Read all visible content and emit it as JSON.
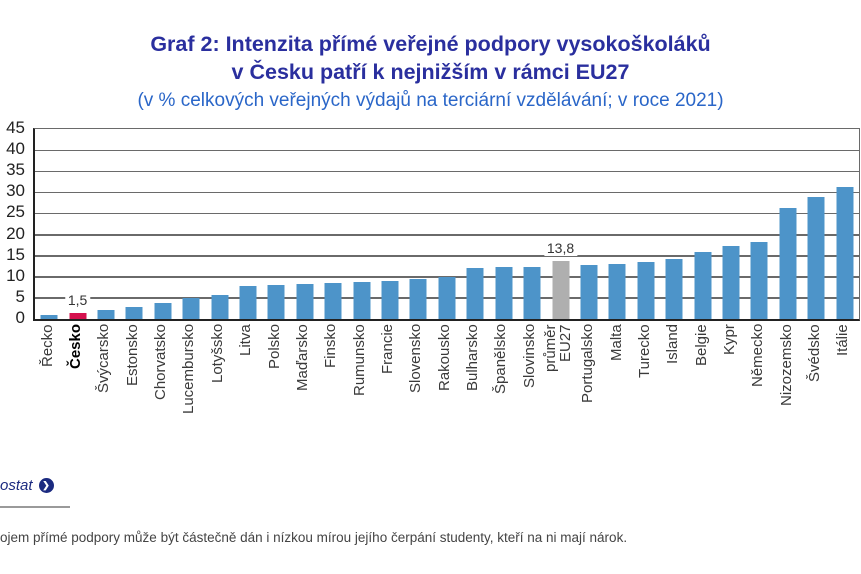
{
  "title": {
    "line1": "Graf 2: Intenzita přímé veřejné podpory vysokoškoláků",
    "line2": "v Česku patří k nejnižším v rámci EU27",
    "subtitle": "(v % celkových veřejných výdajů na terciární vzdělávání; v roce 2021)"
  },
  "chart_data": {
    "type": "bar",
    "categories": [
      "Řecko",
      "Česko",
      "Švýcarsko",
      "Estonsko",
      "Chorvatsko",
      "Lucembursko",
      "Lotyšsko",
      "Litva",
      "Polsko",
      "Maďarsko",
      "Finsko",
      "Rumunsko",
      "Francie",
      "Slovensko",
      "Rakousko",
      "Bulharsko",
      "Španělsko",
      "Slovinsko",
      "průměr\nEU27",
      "Portugalsko",
      "Malta",
      "Turecko",
      "Island",
      "Belgie",
      "Kypr",
      "Německo",
      "Nizozemsko",
      "Švédsko",
      "Itálie"
    ],
    "values": [
      1.0,
      1.5,
      2.1,
      2.9,
      3.8,
      4.9,
      5.7,
      7.8,
      8.0,
      8.3,
      8.5,
      8.7,
      9.0,
      9.4,
      9.9,
      12.2,
      12.3,
      12.3,
      13.8,
      12.9,
      13.1,
      13.4,
      14.2,
      15.8,
      17.2,
      18.3,
      26.3,
      29.0,
      31.3
    ],
    "value_labels": [
      {
        "index": 1,
        "text": "1,5"
      },
      {
        "index": 18,
        "text": "13,8"
      }
    ],
    "highlight_index": 1,
    "average_index": 18,
    "bold_category_index": 1,
    "ylim": [
      0,
      45
    ],
    "yticks": [
      0,
      5,
      10,
      15,
      20,
      25,
      30,
      35,
      40,
      45
    ],
    "grid": true,
    "legend": false,
    "xlabel": "",
    "ylabel": ""
  },
  "colors": {
    "title_blue": "#2A2F9E",
    "subtitle_blue": "#2A66C8",
    "bar_blue": "#4D94C9",
    "bar_red": "#D5114E",
    "bar_gray": "#AFAFAF",
    "gridline_gray": "#6a6a6a"
  },
  "footer": {
    "source_text_visible": "ostat",
    "source_icon": "arrow-right-circle-icon"
  },
  "footnote": "ojem přímé podpory může být částečně dán i nízkou mírou jejího čerpání studenty, kteří na ni mají nárok."
}
